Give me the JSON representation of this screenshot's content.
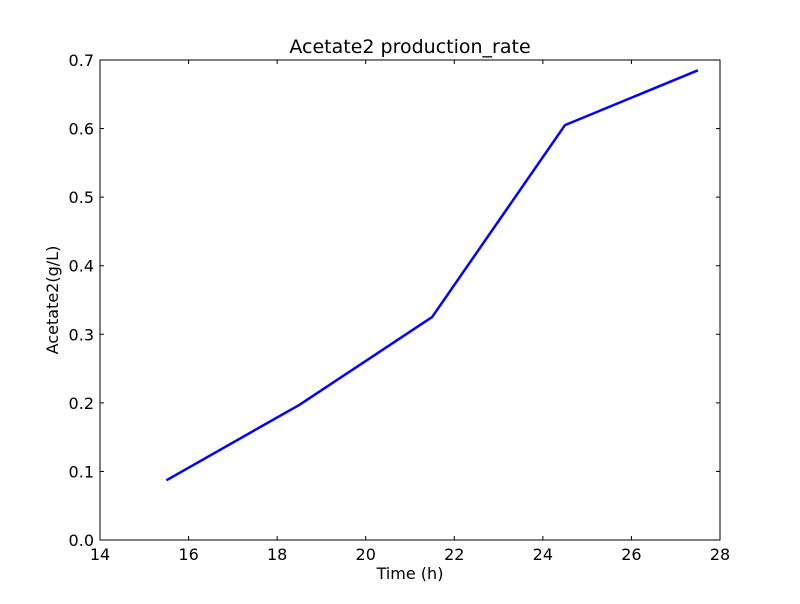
{
  "chart_data": {
    "type": "line",
    "title": "Acetate2 production_rate",
    "xlabel": "Time (h)",
    "ylabel": "Acetate2(g/L)",
    "xlim": [
      14,
      28
    ],
    "ylim": [
      0,
      0.7
    ],
    "x_ticks": [
      14,
      16,
      18,
      20,
      22,
      24,
      26,
      28
    ],
    "x_tick_labels": [
      "14",
      "16",
      "18",
      "20",
      "22",
      "24",
      "26",
      "28"
    ],
    "y_ticks": [
      0,
      0.1,
      0.2,
      0.3,
      0.4,
      0.5,
      0.6,
      0.7
    ],
    "y_tick_labels": [
      "0.0",
      "0.1",
      "0.2",
      "0.3",
      "0.4",
      "0.5",
      "0.6",
      "0.7"
    ],
    "grid": false,
    "legend": "none",
    "series": [
      {
        "x": [
          15.5,
          18.5,
          21.5,
          24.5,
          27.5
        ],
        "y": [
          0.087,
          0.197,
          0.325,
          0.605,
          0.685
        ],
        "color": "#0000ff"
      }
    ]
  }
}
